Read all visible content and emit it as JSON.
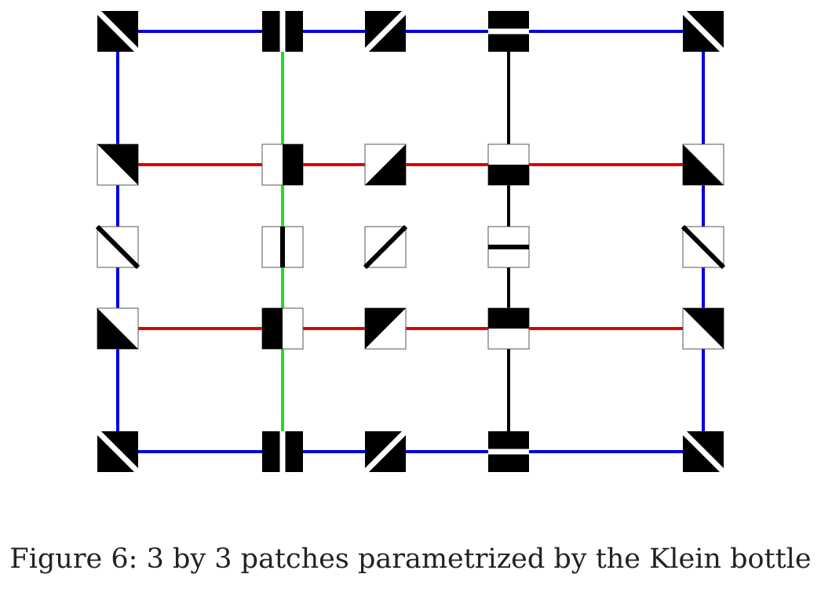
{
  "caption": "Figure 6: 3 by 3 patches parametrized by the Klein bottle",
  "colors": {
    "blue": "#0000dd",
    "red": "#dd0000",
    "green": "#22dd22",
    "black": "#000000",
    "patch_fill": "#000000",
    "patch_background": "#ffffff",
    "patch_border": "#555555"
  },
  "grid": {
    "columns": [
      "c1",
      "c2",
      "c3",
      "c4",
      "c5"
    ],
    "rows": [
      "r1",
      "r2",
      "r3",
      "r4",
      "r5"
    ]
  },
  "edges": [
    {
      "from": [
        0,
        0
      ],
      "to": [
        1,
        0
      ],
      "color": "blue"
    },
    {
      "from": [
        1,
        0
      ],
      "to": [
        2,
        0
      ],
      "color": "blue"
    },
    {
      "from": [
        2,
        0
      ],
      "to": [
        3,
        0
      ],
      "color": "blue"
    },
    {
      "from": [
        3,
        0
      ],
      "to": [
        4,
        0
      ],
      "color": "blue"
    },
    {
      "from": [
        0,
        4
      ],
      "to": [
        1,
        4
      ],
      "color": "blue"
    },
    {
      "from": [
        1,
        4
      ],
      "to": [
        2,
        4
      ],
      "color": "blue"
    },
    {
      "from": [
        2,
        4
      ],
      "to": [
        3,
        4
      ],
      "color": "blue"
    },
    {
      "from": [
        3,
        4
      ],
      "to": [
        4,
        4
      ],
      "color": "blue"
    },
    {
      "from": [
        0,
        0
      ],
      "to": [
        0,
        1
      ],
      "color": "blue"
    },
    {
      "from": [
        0,
        1
      ],
      "to": [
        0,
        2
      ],
      "color": "blue"
    },
    {
      "from": [
        0,
        2
      ],
      "to": [
        0,
        3
      ],
      "color": "blue"
    },
    {
      "from": [
        0,
        3
      ],
      "to": [
        0,
        4
      ],
      "color": "blue"
    },
    {
      "from": [
        4,
        0
      ],
      "to": [
        4,
        1
      ],
      "color": "blue"
    },
    {
      "from": [
        4,
        1
      ],
      "to": [
        4,
        2
      ],
      "color": "blue"
    },
    {
      "from": [
        4,
        2
      ],
      "to": [
        4,
        3
      ],
      "color": "blue"
    },
    {
      "from": [
        4,
        3
      ],
      "to": [
        4,
        4
      ],
      "color": "blue"
    },
    {
      "from": [
        1,
        0
      ],
      "to": [
        1,
        1
      ],
      "color": "green"
    },
    {
      "from": [
        1,
        1
      ],
      "to": [
        1,
        2
      ],
      "color": "green"
    },
    {
      "from": [
        1,
        2
      ],
      "to": [
        1,
        3
      ],
      "color": "green"
    },
    {
      "from": [
        1,
        3
      ],
      "to": [
        1,
        4
      ],
      "color": "green"
    },
    {
      "from": [
        3,
        0
      ],
      "to": [
        3,
        1
      ],
      "color": "black"
    },
    {
      "from": [
        3,
        1
      ],
      "to": [
        3,
        2
      ],
      "color": "black"
    },
    {
      "from": [
        3,
        2
      ],
      "to": [
        3,
        3
      ],
      "color": "black"
    },
    {
      "from": [
        3,
        3
      ],
      "to": [
        3,
        4
      ],
      "color": "black"
    },
    {
      "from": [
        0,
        1
      ],
      "to": [
        1,
        1
      ],
      "color": "red"
    },
    {
      "from": [
        1,
        1
      ],
      "to": [
        2,
        1
      ],
      "color": "red"
    },
    {
      "from": [
        2,
        1
      ],
      "to": [
        3,
        1
      ],
      "color": "red"
    },
    {
      "from": [
        3,
        1
      ],
      "to": [
        4,
        1
      ],
      "color": "red"
    },
    {
      "from": [
        0,
        3
      ],
      "to": [
        1,
        3
      ],
      "color": "red"
    },
    {
      "from": [
        1,
        3
      ],
      "to": [
        2,
        3
      ],
      "color": "red"
    },
    {
      "from": [
        2,
        3
      ],
      "to": [
        3,
        3
      ],
      "color": "red"
    },
    {
      "from": [
        3,
        3
      ],
      "to": [
        4,
        3
      ],
      "color": "red"
    }
  ],
  "patches": [
    {
      "col": 0,
      "row": 0,
      "kind": "inv-line",
      "angle": "main-diagonal"
    },
    {
      "col": 1,
      "row": 0,
      "kind": "inv-line",
      "angle": "vertical"
    },
    {
      "col": 2,
      "row": 0,
      "kind": "inv-line",
      "angle": "anti-diagonal"
    },
    {
      "col": 3,
      "row": 0,
      "kind": "inv-line",
      "angle": "horizontal"
    },
    {
      "col": 4,
      "row": 0,
      "kind": "inv-line",
      "angle": "main-diagonal"
    },
    {
      "col": 0,
      "row": 1,
      "kind": "half",
      "shade": "top-right-triangle"
    },
    {
      "col": 1,
      "row": 1,
      "kind": "half",
      "shade": "right-half"
    },
    {
      "col": 2,
      "row": 1,
      "kind": "half",
      "shade": "bottom-right-triangle"
    },
    {
      "col": 3,
      "row": 1,
      "kind": "half",
      "shade": "bottom-half"
    },
    {
      "col": 4,
      "row": 1,
      "kind": "half",
      "shade": "bottom-left-triangle"
    },
    {
      "col": 0,
      "row": 2,
      "kind": "line",
      "angle": "main-diagonal"
    },
    {
      "col": 1,
      "row": 2,
      "kind": "line",
      "angle": "vertical"
    },
    {
      "col": 2,
      "row": 2,
      "kind": "line",
      "angle": "anti-diagonal"
    },
    {
      "col": 3,
      "row": 2,
      "kind": "line",
      "angle": "horizontal"
    },
    {
      "col": 4,
      "row": 2,
      "kind": "line",
      "angle": "main-diagonal"
    },
    {
      "col": 0,
      "row": 3,
      "kind": "half",
      "shade": "bottom-left-triangle"
    },
    {
      "col": 1,
      "row": 3,
      "kind": "half",
      "shade": "left-half"
    },
    {
      "col": 2,
      "row": 3,
      "kind": "half",
      "shade": "top-left-triangle"
    },
    {
      "col": 3,
      "row": 3,
      "kind": "half",
      "shade": "top-half"
    },
    {
      "col": 4,
      "row": 3,
      "kind": "half",
      "shade": "top-right-triangle"
    },
    {
      "col": 0,
      "row": 4,
      "kind": "inv-line",
      "angle": "main-diagonal"
    },
    {
      "col": 1,
      "row": 4,
      "kind": "inv-line",
      "angle": "vertical"
    },
    {
      "col": 2,
      "row": 4,
      "kind": "inv-line",
      "angle": "anti-diagonal"
    },
    {
      "col": 3,
      "row": 4,
      "kind": "inv-line",
      "angle": "horizontal"
    },
    {
      "col": 4,
      "row": 4,
      "kind": "inv-line",
      "angle": "main-diagonal"
    }
  ]
}
